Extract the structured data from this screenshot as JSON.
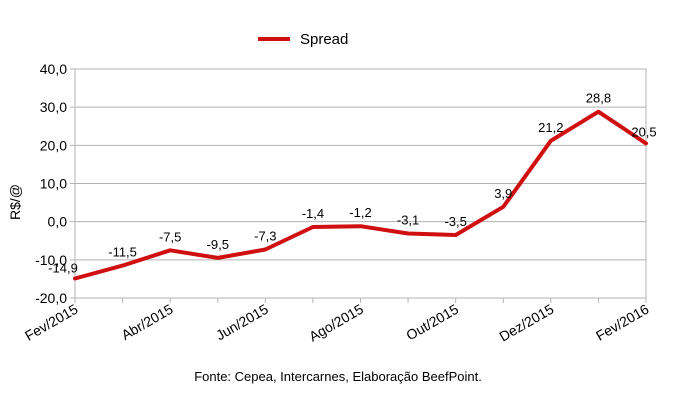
{
  "chart_data": {
    "type": "line",
    "title": "",
    "ylabel": "R$/@",
    "xlabel": "",
    "ylim": [
      -20,
      40
    ],
    "y_ticks": [
      "40,0",
      "30,0",
      "20,0",
      "10,0",
      "0,0",
      "-10,0",
      "-20,0"
    ],
    "y_tick_values": [
      40,
      30,
      20,
      10,
      0,
      -10,
      -20
    ],
    "x_tick_labels": [
      "Fev/2015",
      "Abr/2015",
      "Jun/2015",
      "Ago/2015",
      "Out/2015",
      "Dez/2015",
      "Fev/2016"
    ],
    "categories": [
      "Fev/2015",
      "Mar/2015",
      "Abr/2015",
      "Mai/2015",
      "Jun/2015",
      "Jul/2015",
      "Ago/2015",
      "Set/2015",
      "Out/2015",
      "Nov/2015",
      "Dez/2015",
      "Jan/2016",
      "Fev/2016"
    ],
    "series": [
      {
        "name": "Spread",
        "color": "#d01010",
        "values": [
          -14.9,
          -11.5,
          -7.5,
          -9.5,
          -7.3,
          -1.4,
          -1.2,
          -3.1,
          -3.5,
          3.9,
          21.2,
          28.8,
          20.5
        ],
        "labels": [
          "-14,9",
          "-11,5",
          "-7,5",
          "-9,5",
          "-7,3",
          "-1,4",
          "-1,2",
          "-3,1",
          "-3,5",
          "3,9",
          "21,2",
          "28,8",
          "20,5"
        ]
      }
    ],
    "legend": "top-center",
    "grid": true,
    "source": "Fonte: Cepea, Intercarnes, Elaboração BeefPoint."
  }
}
